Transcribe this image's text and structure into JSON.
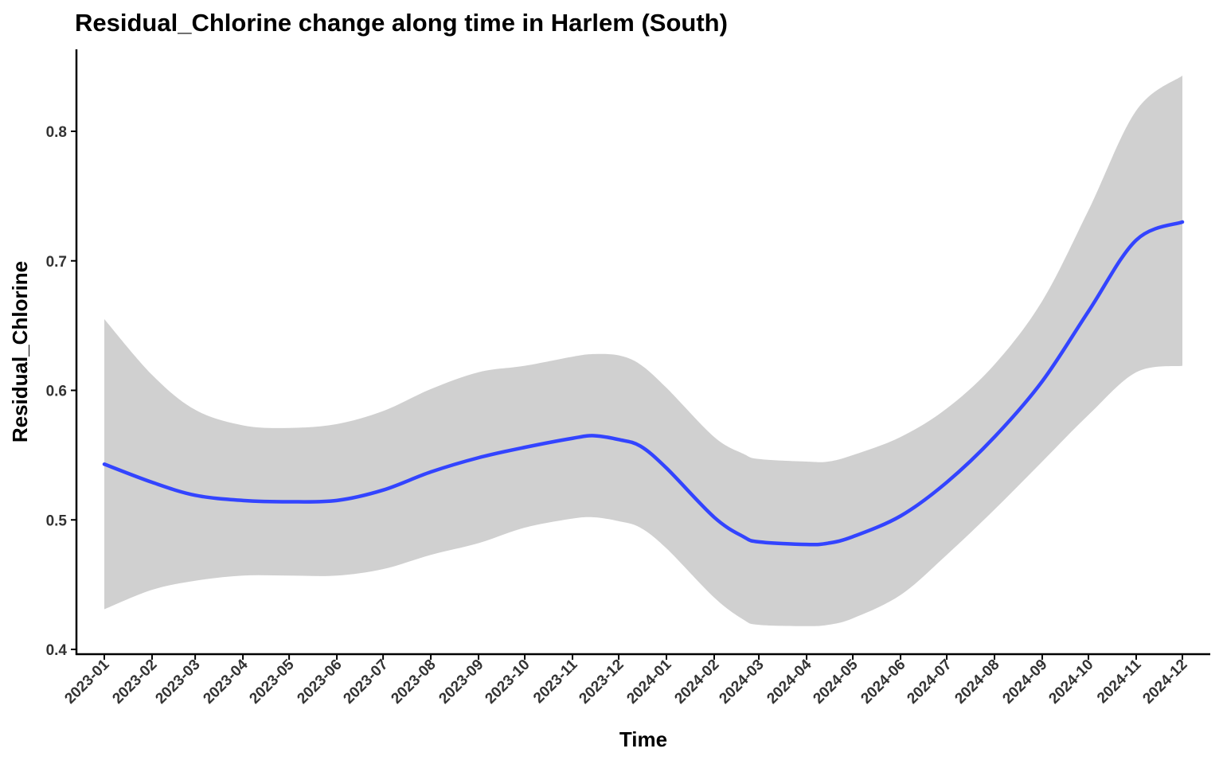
{
  "chart_data": {
    "type": "line",
    "title": "Residual_Chlorine change along time in Harlem (South)",
    "xlabel": "Time",
    "ylabel": "Residual_Chlorine",
    "x_ticks": [
      "2023-01",
      "2023-02",
      "2023-03",
      "2023-04",
      "2023-05",
      "2023-06",
      "2023-07",
      "2023-08",
      "2023-09",
      "2023-10",
      "2023-11",
      "2023-12",
      "2024-01",
      "2024-02",
      "2024-03",
      "2024-04",
      "2024-05",
      "2024-06",
      "2024-07",
      "2024-08",
      "2024-09",
      "2024-10",
      "2024-11",
      "2024-12"
    ],
    "y_ticks": [
      "0.4",
      "0.5",
      "0.6",
      "0.7",
      "0.8"
    ],
    "ylim": [
      0.395,
      0.86
    ],
    "grid": false,
    "legend": "none",
    "colors": {
      "line": "#3344FF",
      "ribbon": "#D0D0D0",
      "axis": "#000000"
    },
    "series": [
      {
        "x": [
          "2023-01-01",
          "2023-02-01",
          "2023-03-01",
          "2023-04-01",
          "2023-05-01",
          "2023-06-01",
          "2023-07-01",
          "2023-08-01",
          "2023-09-01",
          "2023-10-01",
          "2023-11-01",
          "2023-11-15",
          "2023-12-01",
          "2023-12-15",
          "2024-01-01",
          "2024-02-01",
          "2024-02-20",
          "2024-03-01",
          "2024-04-01",
          "2024-04-15",
          "2024-05-01",
          "2024-06-01",
          "2024-07-01",
          "2024-08-01",
          "2024-09-01",
          "2024-10-01",
          "2024-11-01",
          "2024-12-01"
        ],
        "y": [
          0.543,
          0.529,
          0.519,
          0.515,
          0.514,
          0.515,
          0.523,
          0.537,
          0.548,
          0.556,
          0.563,
          0.565,
          0.562,
          0.557,
          0.54,
          0.502,
          0.487,
          0.483,
          0.481,
          0.482,
          0.487,
          0.503,
          0.529,
          0.564,
          0.607,
          0.661,
          0.716,
          0.73
        ],
        "lower": [
          0.431,
          0.446,
          0.453,
          0.457,
          0.457,
          0.457,
          0.462,
          0.473,
          0.482,
          0.494,
          0.501,
          0.502,
          0.499,
          0.494,
          0.478,
          0.44,
          0.423,
          0.419,
          0.418,
          0.419,
          0.424,
          0.442,
          0.473,
          0.508,
          0.545,
          0.581,
          0.614,
          0.619
        ],
        "upper": [
          0.655,
          0.612,
          0.585,
          0.573,
          0.571,
          0.574,
          0.584,
          0.601,
          0.614,
          0.619,
          0.626,
          0.628,
          0.627,
          0.62,
          0.602,
          0.564,
          0.551,
          0.547,
          0.545,
          0.545,
          0.55,
          0.564,
          0.586,
          0.62,
          0.669,
          0.739,
          0.816,
          0.843
        ]
      }
    ]
  }
}
